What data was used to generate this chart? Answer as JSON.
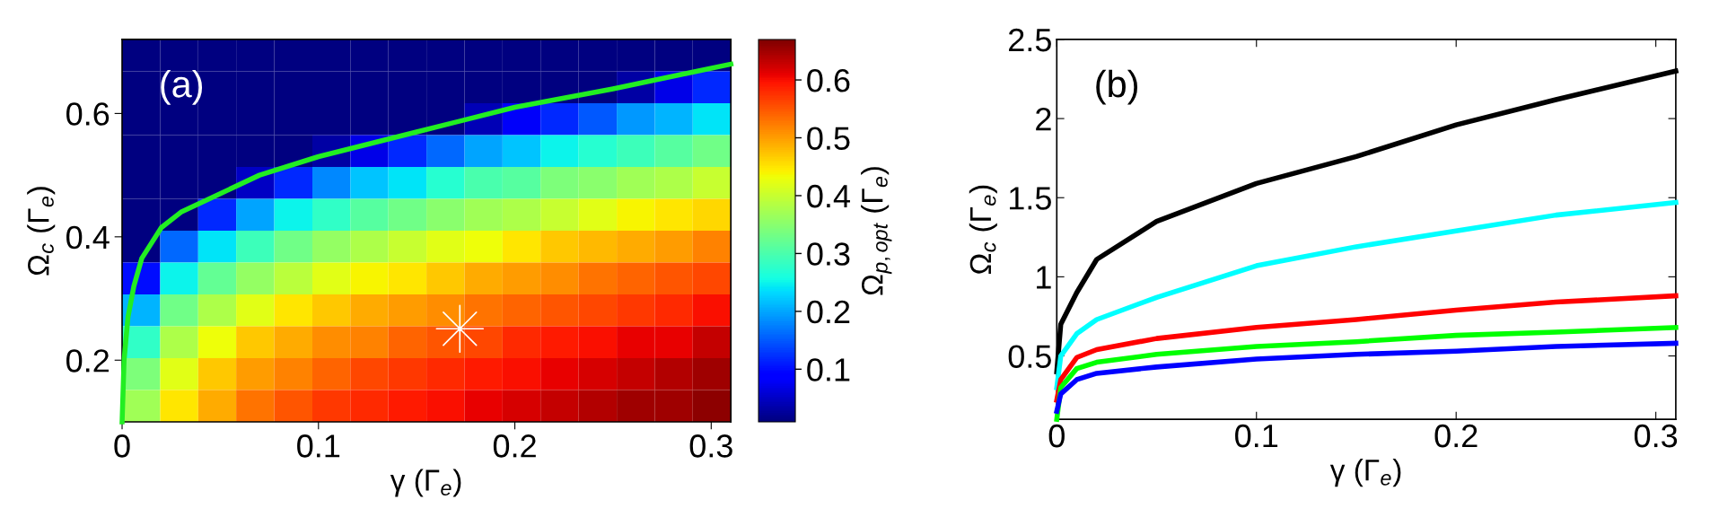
{
  "chart_data": [
    {
      "type": "heatmap",
      "xlabel": "γ (Γ$_{e}$)",
      "ylabel": "Ω$_{c}$ (Γ$_{e}$)",
      "clabel": "Ω$_{p,opt}$ (Γ$_{e}$)",
      "annotations": [
        "(a)"
      ],
      "xlim": [
        0,
        0.31
      ],
      "ylim": [
        0.1,
        0.72
      ],
      "xticks": [
        0,
        0.1,
        0.2,
        0.3
      ],
      "yticks": [
        0.2,
        0.4,
        0.6
      ],
      "clim": [
        0.009,
        0.67
      ],
      "cticks": [
        0.1,
        0.2,
        0.3,
        0.4,
        0.5,
        0.6
      ],
      "x": [
        0.0097,
        0.0291,
        0.0484,
        0.0678,
        0.0872,
        0.1066,
        0.1259,
        0.1453,
        0.1647,
        0.1841,
        0.2034,
        0.2228,
        0.2422,
        0.2616,
        0.2809,
        0.3003
      ],
      "y": [
        0.6942,
        0.6425,
        0.5908,
        0.5392,
        0.4875,
        0.4358,
        0.3842,
        0.3325,
        0.2808,
        0.2292,
        0.1775,
        0.1258
      ],
      "cells": [
        [
          0.01,
          0.01,
          0.01,
          0.01,
          0.01,
          0.01,
          0.01,
          0.01,
          0.01,
          0.01,
          0.01,
          0.01,
          0.01,
          0.01,
          0.01,
          0.01
        ],
        [
          0.01,
          0.01,
          0.01,
          0.01,
          0.01,
          0.01,
          0.01,
          0.01,
          0.01,
          0.01,
          0.01,
          0.01,
          0.01,
          0.03,
          0.07,
          0.12
        ],
        [
          0.01,
          0.01,
          0.01,
          0.01,
          0.01,
          0.01,
          0.01,
          0.01,
          0.01,
          0.04,
          0.08,
          0.12,
          0.15,
          0.19,
          0.21,
          0.24
        ],
        [
          0.01,
          0.01,
          0.01,
          0.01,
          0.01,
          0.03,
          0.07,
          0.12,
          0.16,
          0.2,
          0.22,
          0.25,
          0.27,
          0.29,
          0.31,
          0.33
        ],
        [
          0.01,
          0.01,
          0.01,
          0.05,
          0.12,
          0.18,
          0.22,
          0.24,
          0.27,
          0.3,
          0.31,
          0.34,
          0.35,
          0.37,
          0.38,
          0.4
        ],
        [
          0.01,
          0.01,
          0.12,
          0.2,
          0.25,
          0.28,
          0.31,
          0.33,
          0.35,
          0.37,
          0.38,
          0.4,
          0.42,
          0.44,
          0.45,
          0.46
        ],
        [
          0.01,
          0.16,
          0.24,
          0.29,
          0.33,
          0.36,
          0.38,
          0.4,
          0.42,
          0.43,
          0.45,
          0.47,
          0.48,
          0.49,
          0.5,
          0.52
        ],
        [
          0.1,
          0.25,
          0.32,
          0.36,
          0.39,
          0.42,
          0.44,
          0.45,
          0.47,
          0.49,
          0.5,
          0.51,
          0.53,
          0.54,
          0.55,
          0.56
        ],
        [
          0.21,
          0.33,
          0.38,
          0.42,
          0.45,
          0.47,
          0.49,
          0.5,
          0.51,
          0.53,
          0.54,
          0.55,
          0.56,
          0.57,
          0.58,
          0.6
        ],
        [
          0.28,
          0.38,
          0.43,
          0.47,
          0.49,
          0.51,
          0.52,
          0.54,
          0.55,
          0.56,
          0.58,
          0.59,
          0.6,
          0.61,
          0.61,
          0.63
        ],
        [
          0.34,
          0.42,
          0.47,
          0.5,
          0.52,
          0.54,
          0.56,
          0.57,
          0.58,
          0.59,
          0.6,
          0.61,
          0.62,
          0.63,
          0.64,
          0.65
        ],
        [
          0.37,
          0.45,
          0.49,
          0.53,
          0.55,
          0.57,
          0.58,
          0.59,
          0.6,
          0.61,
          0.62,
          0.63,
          0.64,
          0.65,
          0.65,
          0.66
        ]
      ],
      "series": [
        {
          "type": "line",
          "color": "#22ee22",
          "x": [
            0,
            0.001,
            0.003,
            0.006,
            0.01,
            0.02,
            0.03,
            0.05,
            0.07,
            0.1,
            0.15,
            0.2,
            0.25,
            0.31
          ],
          "values": [
            0.1,
            0.2,
            0.27,
            0.32,
            0.365,
            0.415,
            0.44,
            0.47,
            0.5,
            0.53,
            0.57,
            0.61,
            0.64,
            0.68
          ]
        },
        {
          "type": "scatter",
          "color": "#ffffff",
          "marker": "star",
          "x": [
            0.172
          ],
          "values": [
            0.251
          ]
        }
      ]
    },
    {
      "type": "line",
      "xlabel": "γ (Γ$_{e}$)",
      "ylabel": "Ω$_{c}$ (Γ$_{e}$)",
      "annotations": [
        "(b)"
      ],
      "xlim": [
        0,
        0.31
      ],
      "ylim": [
        0.1,
        2.5
      ],
      "xticks": [
        0,
        0.1,
        0.2,
        0.3
      ],
      "yticks": [
        0.5,
        1,
        1.5,
        2,
        2.5
      ],
      "x": [
        0,
        0.002,
        0.01,
        0.02,
        0.05,
        0.1,
        0.15,
        0.2,
        0.25,
        0.31
      ],
      "series": [
        {
          "color": "#000000",
          "values": [
            0.4,
            0.7,
            0.9,
            1.11,
            1.35,
            1.59,
            1.76,
            1.96,
            2.12,
            2.3
          ]
        },
        {
          "color": "#00ffff",
          "values": [
            0.3,
            0.5,
            0.64,
            0.73,
            0.87,
            1.07,
            1.19,
            1.29,
            1.39,
            1.47
          ]
        },
        {
          "color": "#ff0000",
          "values": [
            0.22,
            0.35,
            0.49,
            0.54,
            0.61,
            0.68,
            0.73,
            0.79,
            0.84,
            0.88
          ]
        },
        {
          "color": "#00ff00",
          "values": [
            0.1,
            0.3,
            0.42,
            0.46,
            0.51,
            0.56,
            0.59,
            0.63,
            0.65,
            0.68
          ]
        },
        {
          "color": "#0000ff",
          "values": [
            0.15,
            0.26,
            0.35,
            0.39,
            0.43,
            0.48,
            0.51,
            0.53,
            0.56,
            0.58
          ]
        }
      ]
    }
  ]
}
